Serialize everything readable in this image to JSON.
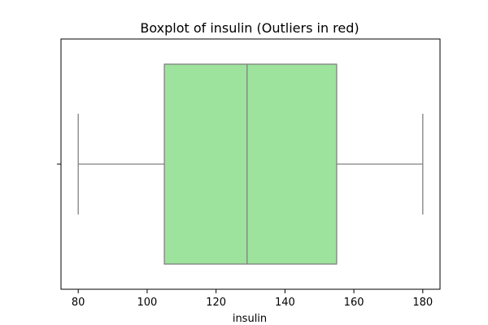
{
  "chart_data": {
    "type": "boxplot",
    "title": "Boxplot of insulin (Outliers in red)",
    "xlabel": "insulin",
    "ylabel": "",
    "orientation": "horizontal",
    "xlim": [
      75,
      185
    ],
    "xticks": [
      80,
      100,
      120,
      140,
      160,
      180
    ],
    "grid": false,
    "series": [
      {
        "whisker_low": 80,
        "q1": 105,
        "median": 129,
        "q3": 155,
        "whisker_high": 180,
        "outliers": []
      }
    ],
    "colors": {
      "box_fill": "#9de39d",
      "lines": "#808080",
      "outliers": "#ff0000"
    }
  }
}
